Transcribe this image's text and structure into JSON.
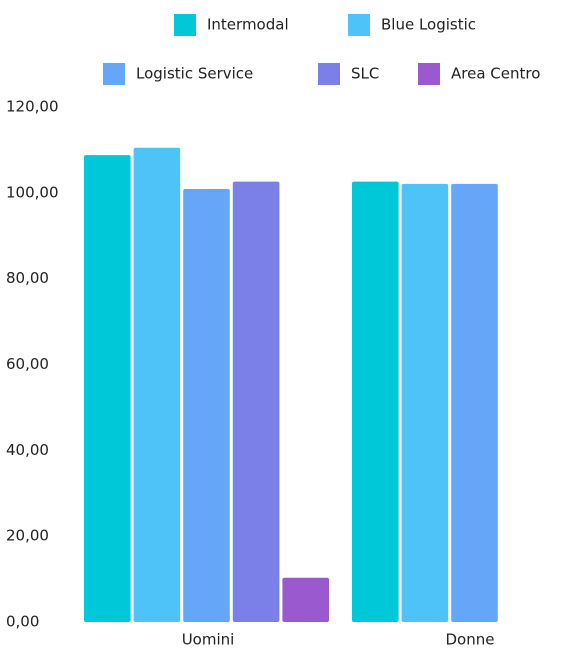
{
  "chart_data": {
    "type": "bar",
    "categories": [
      "Uomini",
      "Donne"
    ],
    "series": [
      {
        "name": "Intermodal",
        "color": "#00c8d8",
        "values": [
          108.8,
          102.6
        ]
      },
      {
        "name": "Blue Logistic",
        "color": "#4dc3f8",
        "values": [
          110.5,
          102.1
        ]
      },
      {
        "name": "Logistic Service",
        "color": "#66a6f8",
        "values": [
          100.9,
          102.1
        ]
      },
      {
        "name": "SLC",
        "color": "#7b80e8",
        "values": [
          102.6,
          null
        ]
      },
      {
        "name": "Area Centro",
        "color": "#9b59d0",
        "values": [
          10.3,
          null
        ]
      }
    ],
    "ylim": [
      0,
      120
    ],
    "yticks": [
      {
        "value": 0,
        "label": "0,00"
      },
      {
        "value": 20,
        "label": "20,00"
      },
      {
        "value": 40,
        "label": "40,00"
      },
      {
        "value": 60,
        "label": "60,00"
      },
      {
        "value": 80,
        "label": "80,00"
      },
      {
        "value": 100,
        "label": "100,00"
      },
      {
        "value": 120,
        "label": "120,00"
      }
    ],
    "legend": "top"
  }
}
